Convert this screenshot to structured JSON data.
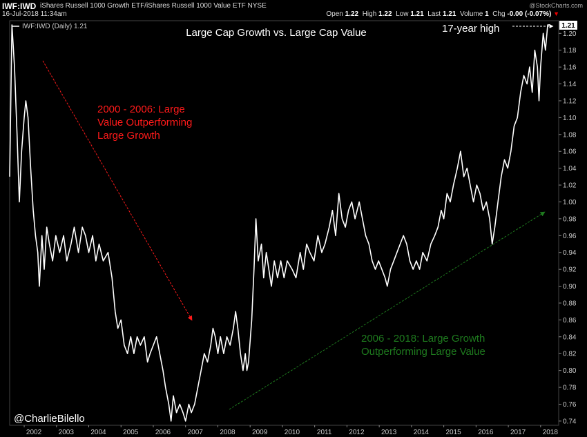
{
  "header": {
    "symbol": "IWF:IWD",
    "description": "iShares Russell 1000 Growth ETF/iShares Russell 1000 Value ETF  NYSE",
    "date": "16-Jul-2018 11:34am",
    "open_label": "Open",
    "open": "1.22",
    "high_label": "High",
    "high": "1.22",
    "low_label": "Low",
    "low": "1.21",
    "last_label": "Last",
    "last": "1.21",
    "volume_label": "Volume",
    "volume": "1",
    "chg_label": "Chg",
    "chg": "-0.00 (-0.07%)",
    "credit": "@StockCharts.com"
  },
  "chart_data": {
    "type": "line",
    "title": "Large Cap Growth vs. Large Cap Value",
    "legend": "IWF:IWD (Daily) 1.21",
    "last_value_label": "1.21",
    "x_tick_labels": [
      "2002",
      "2003",
      "2004",
      "2005",
      "2006",
      "2007",
      "2008",
      "2009",
      "2010",
      "2011",
      "2012",
      "2013",
      "2014",
      "2015",
      "2016",
      "2017",
      "2018"
    ],
    "y_ticks": [
      "0.74",
      "0.76",
      "0.78",
      "0.80",
      "0.82",
      "0.84",
      "0.86",
      "0.88",
      "0.90",
      "0.92",
      "0.94",
      "0.96",
      "0.98",
      "1.00",
      "1.02",
      "1.04",
      "1.06",
      "1.08",
      "1.10",
      "1.12",
      "1.14",
      "1.16",
      "1.18",
      "1.20"
    ],
    "xlim": [
      2001.55,
      2018.56
    ],
    "ylim": [
      0.735,
      1.215
    ],
    "series": [
      {
        "values": [
          [
            2001.55,
            1.03
          ],
          [
            2001.62,
            1.21
          ],
          [
            2001.7,
            1.16
          ],
          [
            2001.78,
            1.08
          ],
          [
            2001.85,
            1.0
          ],
          [
            2001.92,
            1.06
          ],
          [
            2002.0,
            1.1
          ],
          [
            2002.05,
            1.12
          ],
          [
            2002.12,
            1.1
          ],
          [
            2002.2,
            1.04
          ],
          [
            2002.28,
            0.99
          ],
          [
            2002.35,
            0.96
          ],
          [
            2002.42,
            0.94
          ],
          [
            2002.47,
            0.9
          ],
          [
            2002.55,
            0.96
          ],
          [
            2002.62,
            0.92
          ],
          [
            2002.7,
            0.97
          ],
          [
            2002.78,
            0.95
          ],
          [
            2002.88,
            0.93
          ],
          [
            2002.98,
            0.96
          ],
          [
            2003.1,
            0.94
          ],
          [
            2003.22,
            0.96
          ],
          [
            2003.32,
            0.93
          ],
          [
            2003.45,
            0.95
          ],
          [
            2003.55,
            0.97
          ],
          [
            2003.68,
            0.94
          ],
          [
            2003.8,
            0.97
          ],
          [
            2003.9,
            0.96
          ],
          [
            2004.0,
            0.94
          ],
          [
            2004.12,
            0.96
          ],
          [
            2004.22,
            0.93
          ],
          [
            2004.32,
            0.95
          ],
          [
            2004.45,
            0.93
          ],
          [
            2004.6,
            0.94
          ],
          [
            2004.72,
            0.91
          ],
          [
            2004.82,
            0.87
          ],
          [
            2004.9,
            0.85
          ],
          [
            2005.0,
            0.86
          ],
          [
            2005.1,
            0.83
          ],
          [
            2005.2,
            0.82
          ],
          [
            2005.3,
            0.84
          ],
          [
            2005.4,
            0.82
          ],
          [
            2005.5,
            0.84
          ],
          [
            2005.6,
            0.83
          ],
          [
            2005.72,
            0.84
          ],
          [
            2005.82,
            0.81
          ],
          [
            2005.9,
            0.82
          ],
          [
            2006.0,
            0.83
          ],
          [
            2006.1,
            0.84
          ],
          [
            2006.2,
            0.82
          ],
          [
            2006.3,
            0.8
          ],
          [
            2006.38,
            0.78
          ],
          [
            2006.48,
            0.76
          ],
          [
            2006.55,
            0.74
          ],
          [
            2006.62,
            0.77
          ],
          [
            2006.72,
            0.75
          ],
          [
            2006.82,
            0.76
          ],
          [
            2006.92,
            0.75
          ],
          [
            2007.0,
            0.74
          ],
          [
            2007.1,
            0.76
          ],
          [
            2007.18,
            0.75
          ],
          [
            2007.28,
            0.76
          ],
          [
            2007.38,
            0.78
          ],
          [
            2007.48,
            0.8
          ],
          [
            2007.58,
            0.82
          ],
          [
            2007.68,
            0.81
          ],
          [
            2007.78,
            0.83
          ],
          [
            2007.85,
            0.85
          ],
          [
            2007.92,
            0.84
          ],
          [
            2008.0,
            0.82
          ],
          [
            2008.08,
            0.84
          ],
          [
            2008.18,
            0.82
          ],
          [
            2008.28,
            0.84
          ],
          [
            2008.38,
            0.83
          ],
          [
            2008.48,
            0.85
          ],
          [
            2008.55,
            0.87
          ],
          [
            2008.62,
            0.85
          ],
          [
            2008.7,
            0.82
          ],
          [
            2008.78,
            0.8
          ],
          [
            2008.85,
            0.82
          ],
          [
            2008.9,
            0.8
          ],
          [
            2008.95,
            0.81
          ],
          [
            2009.05,
            0.86
          ],
          [
            2009.12,
            0.92
          ],
          [
            2009.18,
            0.98
          ],
          [
            2009.25,
            0.93
          ],
          [
            2009.35,
            0.95
          ],
          [
            2009.42,
            0.91
          ],
          [
            2009.5,
            0.94
          ],
          [
            2009.58,
            0.92
          ],
          [
            2009.66,
            0.9
          ],
          [
            2009.75,
            0.93
          ],
          [
            2009.85,
            0.91
          ],
          [
            2009.95,
            0.93
          ],
          [
            2010.05,
            0.91
          ],
          [
            2010.15,
            0.93
          ],
          [
            2010.3,
            0.92
          ],
          [
            2010.42,
            0.91
          ],
          [
            2010.55,
            0.94
          ],
          [
            2010.65,
            0.92
          ],
          [
            2010.75,
            0.95
          ],
          [
            2010.85,
            0.94
          ],
          [
            2010.98,
            0.93
          ],
          [
            2011.1,
            0.96
          ],
          [
            2011.22,
            0.94
          ],
          [
            2011.32,
            0.95
          ],
          [
            2011.45,
            0.97
          ],
          [
            2011.55,
            0.99
          ],
          [
            2011.65,
            0.96
          ],
          [
            2011.75,
            1.01
          ],
          [
            2011.85,
            0.98
          ],
          [
            2011.95,
            0.97
          ],
          [
            2012.05,
            0.99
          ],
          [
            2012.15,
            1.0
          ],
          [
            2012.25,
            0.98
          ],
          [
            2012.38,
            1.0
          ],
          [
            2012.48,
            0.98
          ],
          [
            2012.58,
            0.96
          ],
          [
            2012.68,
            0.95
          ],
          [
            2012.78,
            0.93
          ],
          [
            2012.88,
            0.92
          ],
          [
            2012.98,
            0.93
          ],
          [
            2013.08,
            0.92
          ],
          [
            2013.18,
            0.91
          ],
          [
            2013.25,
            0.9
          ],
          [
            2013.35,
            0.92
          ],
          [
            2013.45,
            0.93
          ],
          [
            2013.55,
            0.94
          ],
          [
            2013.65,
            0.95
          ],
          [
            2013.75,
            0.96
          ],
          [
            2013.85,
            0.95
          ],
          [
            2013.95,
            0.93
          ],
          [
            2014.05,
            0.92
          ],
          [
            2014.15,
            0.93
          ],
          [
            2014.25,
            0.92
          ],
          [
            2014.35,
            0.94
          ],
          [
            2014.48,
            0.93
          ],
          [
            2014.6,
            0.95
          ],
          [
            2014.72,
            0.96
          ],
          [
            2014.82,
            0.97
          ],
          [
            2014.92,
            0.99
          ],
          [
            2015.0,
            0.98
          ],
          [
            2015.1,
            1.01
          ],
          [
            2015.2,
            1.0
          ],
          [
            2015.3,
            1.02
          ],
          [
            2015.42,
            1.04
          ],
          [
            2015.52,
            1.06
          ],
          [
            2015.62,
            1.03
          ],
          [
            2015.72,
            1.04
          ],
          [
            2015.82,
            1.02
          ],
          [
            2015.92,
            1.0
          ],
          [
            2016.02,
            1.02
          ],
          [
            2016.12,
            1.01
          ],
          [
            2016.22,
            0.99
          ],
          [
            2016.32,
            1.0
          ],
          [
            2016.42,
            0.98
          ],
          [
            2016.5,
            0.95
          ],
          [
            2016.58,
            0.97
          ],
          [
            2016.68,
            1.0
          ],
          [
            2016.78,
            1.03
          ],
          [
            2016.88,
            1.05
          ],
          [
            2016.98,
            1.04
          ],
          [
            2017.08,
            1.06
          ],
          [
            2017.18,
            1.09
          ],
          [
            2017.28,
            1.1
          ],
          [
            2017.38,
            1.13
          ],
          [
            2017.48,
            1.15
          ],
          [
            2017.58,
            1.14
          ],
          [
            2017.66,
            1.16
          ],
          [
            2017.74,
            1.13
          ],
          [
            2017.82,
            1.18
          ],
          [
            2017.9,
            1.16
          ],
          [
            2017.95,
            1.12
          ],
          [
            2018.0,
            1.16
          ],
          [
            2018.08,
            1.2
          ],
          [
            2018.15,
            1.18
          ],
          [
            2018.22,
            1.21
          ],
          [
            2018.3,
            1.21
          ]
        ]
      }
    ],
    "annotations": [
      {
        "id": "peak",
        "text": "17-year high"
      },
      {
        "id": "value_period",
        "lines": [
          "2000 - 2006: Large",
          "Value Outperforming",
          "Large Growth"
        ],
        "color": "#ff1a1a"
      },
      {
        "id": "growth_period",
        "lines": [
          "2006 - 2018: Large Growth",
          "Outperforming Large Value"
        ],
        "color": "#1e7a1e"
      },
      {
        "id": "handle",
        "text": "@CharlieBilello"
      }
    ],
    "grid": false,
    "colors": {
      "background": "#000000",
      "line": "#ffffff",
      "axis_text": "#cccccc"
    }
  }
}
